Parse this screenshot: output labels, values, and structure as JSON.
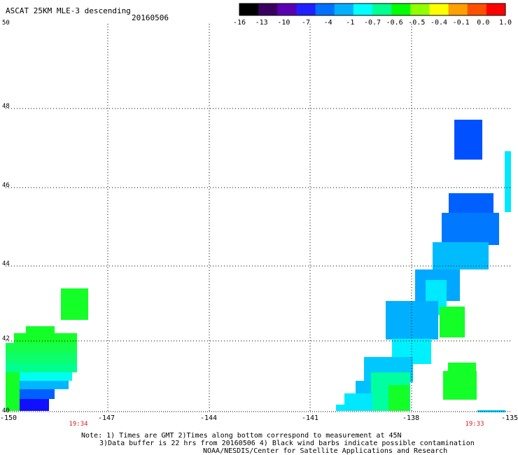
{
  "header": {
    "title": "ASCAT 25KM MLE-3 descending",
    "date": "20160506"
  },
  "colorbar": {
    "labels": [
      "-16",
      "-13",
      "-10",
      "-7",
      "-4",
      "-1",
      "-0.7",
      "-0.6",
      "-0.5",
      "-0.4",
      "-0.1",
      "0.0",
      "1.0"
    ],
    "colors": [
      "#000000",
      "#3a0060",
      "#5a00b0",
      "#2020ff",
      "#0070ff",
      "#00b0ff",
      "#00ffff",
      "#00ff90",
      "#00ff00",
      "#90ff00",
      "#ffff00",
      "#ffa000",
      "#ff5000",
      "#ff0000"
    ]
  },
  "axes": {
    "lat_labels": [
      "50",
      "48",
      "46",
      "44",
      "42",
      "40"
    ],
    "lon_labels": [
      "-150",
      "-147",
      "-144",
      "-141",
      "-138",
      "-135"
    ]
  },
  "times": {
    "left": "19:34",
    "right": "19:33"
  },
  "notes": {
    "line1": "Note: 1) Times are GMT 2)Times along bottom correspond to measurement at 45N",
    "line2": "3)Data buffer is 22 hrs from 20160506 4) Black wind barbs indicate possible contamination",
    "line3": "NOAA/NESDIS/Center for Satellite Applications and Research"
  }
}
